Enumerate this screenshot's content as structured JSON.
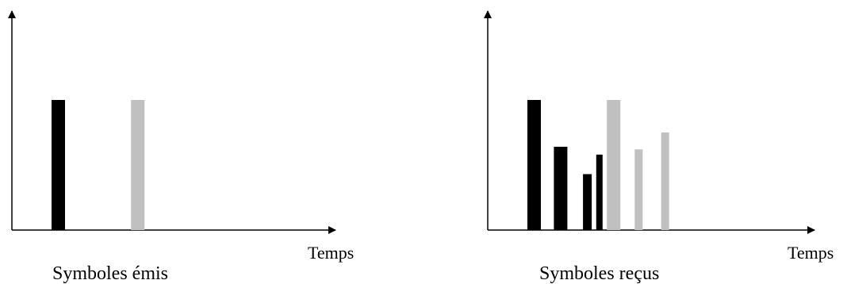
{
  "panels": [
    {
      "caption": "Symboles émis",
      "xlabel": "Temps",
      "pulses": [
        {
          "t": 1.0,
          "h": 1.0,
          "color": "#000000"
        },
        {
          "t": 4.0,
          "h": 1.0,
          "color": "#c0c0c0"
        }
      ]
    },
    {
      "caption": "Symboles reçus",
      "xlabel": "Temps",
      "pulses": [
        {
          "t": 1.0,
          "h": 1.0,
          "color": "#000000"
        },
        {
          "t": 2.0,
          "h": 0.64,
          "color": "#000000"
        },
        {
          "t": 3.1,
          "h": 0.43,
          "color": "#000000"
        },
        {
          "t": 3.6,
          "h": 0.58,
          "color": "#000000"
        },
        {
          "t": 4.0,
          "h": 1.0,
          "color": "#c0c0c0"
        },
        {
          "t": 5.05,
          "h": 0.62,
          "color": "#c0c0c0"
        },
        {
          "t": 6.05,
          "h": 0.75,
          "color": "#c0c0c0"
        }
      ]
    }
  ],
  "colors": {
    "axis": "#000000",
    "emitted_black": "#000000",
    "emitted_gray": "#c0c0c0"
  }
}
